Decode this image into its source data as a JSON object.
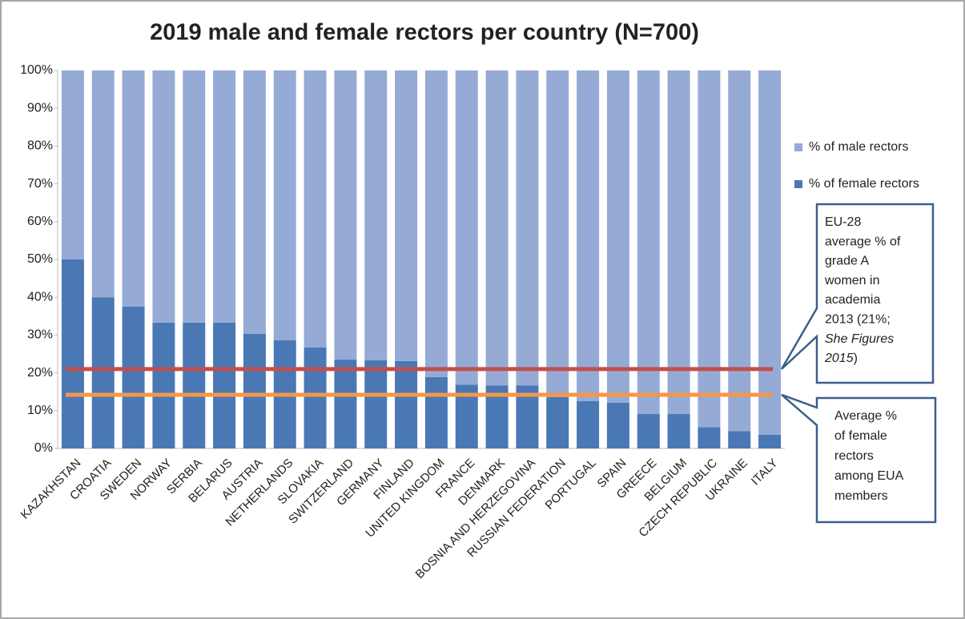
{
  "chart_data": {
    "type": "stacked_bar",
    "title": "2019 male and female rectors per country (N=700)",
    "categories": [
      "KAZAKHSTAN",
      "CROATIA",
      "SWEDEN",
      "NORWAY",
      "SERBIA",
      "BELARUS",
      "AUSTRIA",
      "NETHERLANDS",
      "SLOVAKIA",
      "SWITZERLAND",
      "GERMANY",
      "FINLAND",
      "UNITED KINGDOM",
      "FRANCE",
      "DENMARK",
      "BOSNIA AND HERZEGOVINA",
      "RUSSIAN FEDERATION",
      "PORTUGAL",
      "SPAIN",
      "GREECE",
      "BELGIUM",
      "CZECH REPUBLIC",
      "UKRAINE",
      "ITALY"
    ],
    "series": [
      {
        "name": "% of female rectors",
        "color": "#4a78b5",
        "values": [
          50,
          40,
          37.5,
          33.3,
          33.3,
          33.3,
          30.3,
          28.6,
          26.7,
          23.5,
          23.3,
          23.1,
          18.9,
          16.9,
          16.7,
          16.7,
          13.6,
          12.5,
          12.1,
          9.1,
          9.1,
          5.6,
          4.6,
          3.6
        ]
      },
      {
        "name": "% of male rectors",
        "color": "#95abd6",
        "values": [
          50,
          60,
          62.5,
          66.7,
          66.7,
          66.7,
          69.7,
          71.4,
          73.3,
          76.5,
          76.7,
          76.9,
          81.1,
          83.1,
          83.3,
          83.3,
          86.4,
          87.5,
          87.9,
          90.9,
          90.9,
          94.4,
          95.4,
          96.4
        ]
      }
    ],
    "ylim": [
      0,
      100
    ],
    "yticks": [
      {
        "value": 0,
        "label": "0%"
      },
      {
        "value": 10,
        "label": "10%"
      },
      {
        "value": 20,
        "label": "20%"
      },
      {
        "value": 30,
        "label": "30%"
      },
      {
        "value": 40,
        "label": "40%"
      },
      {
        "value": 50,
        "label": "50%"
      },
      {
        "value": 60,
        "label": "60%"
      },
      {
        "value": 70,
        "label": "70%"
      },
      {
        "value": 80,
        "label": "80%"
      },
      {
        "value": 90,
        "label": "90%"
      },
      {
        "value": 100,
        "label": "100%"
      }
    ],
    "legend": "right",
    "reference_lines": [
      {
        "value": 21,
        "color": "#c0504d",
        "annotation": [
          [
            "EU-28"
          ],
          [
            "average % of"
          ],
          [
            "grade A"
          ],
          [
            "women in"
          ],
          [
            "academia"
          ],
          [
            "2013 (21%;"
          ],
          [
            {
              "text": "She Figures",
              "italic": true
            }
          ],
          [
            {
              "text": "2015",
              "italic": true
            },
            ")"
          ]
        ]
      },
      {
        "value": 14.2,
        "color": "#f79646",
        "annotation": [
          [
            "Average %"
          ],
          [
            "of female"
          ],
          [
            "rectors"
          ],
          [
            "among EUA"
          ],
          [
            "members"
          ]
        ]
      }
    ]
  }
}
